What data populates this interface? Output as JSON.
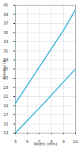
{
  "chart_data": {
    "type": "line",
    "x_label": "Width (mm)",
    "y_label": "Energy (J)",
    "x": [
      5,
      6,
      7,
      8,
      9,
      10
    ],
    "series": [
      {
        "color": "#3ab3d6",
        "values": [
          19.5,
          23.5,
          27.5,
          31.5,
          35.5,
          40
        ]
      },
      {
        "color": "#3ab3d6",
        "values": [
          13,
          15.8,
          18.5,
          21.3,
          24.2,
          27
        ]
      }
    ],
    "xlim": [
      5,
      10
    ],
    "xticks": [
      5,
      6,
      7,
      8,
      9,
      10
    ],
    "ylim": [
      13,
      41
    ],
    "yticks": [
      13,
      15,
      17,
      19,
      21,
      23,
      25,
      27,
      29,
      31,
      33,
      35,
      37,
      39,
      41
    ],
    "grid": true
  }
}
